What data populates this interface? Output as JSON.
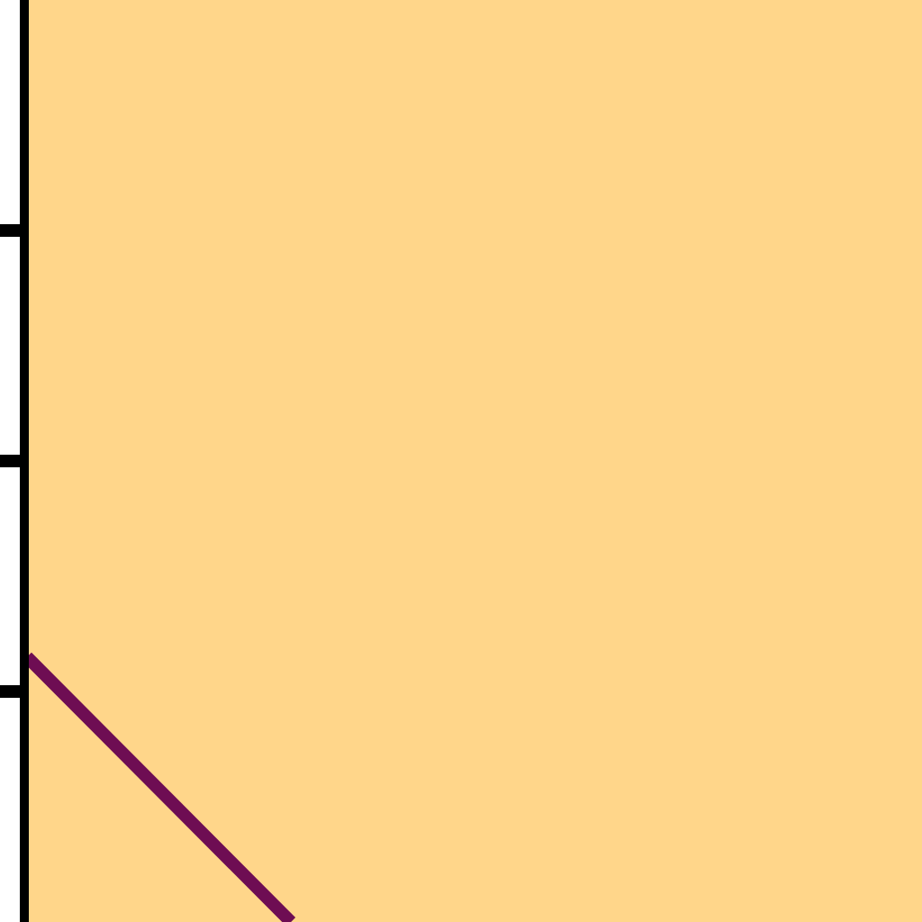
{
  "colors": {
    "plot_background": "#FFD68A",
    "axis": "#000000",
    "series_line": "#6E0D53",
    "page_background": "#FFFFFF"
  },
  "chart_data": {
    "type": "line",
    "title": "",
    "xlabel": "",
    "ylabel": "",
    "xlim": [
      0,
      1
    ],
    "ylim": [
      0,
      4
    ],
    "y_major_ticks": [
      1,
      2,
      3
    ],
    "grid": false,
    "legend": "none",
    "series": [
      {
        "x": [
          0,
          0.295
        ],
        "y": [
          1.15,
          0
        ]
      }
    ]
  }
}
